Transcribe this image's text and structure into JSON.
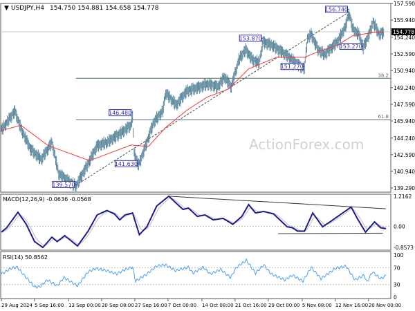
{
  "header": {
    "title": "USDJPY,H4",
    "ohlc": "154.750 154.881 154.658 154.778"
  },
  "watermark": "ActionForex.com",
  "colors": {
    "bars": "#5b879c",
    "sma": "#f03a3a",
    "macd": "#1a1a8c",
    "signal": "#bbbbbb",
    "rsi": "#4a9ff0",
    "annotation": "#3333aa"
  },
  "chart_data": [
    {
      "type": "bar",
      "name": "price",
      "x_unit": "bar",
      "y_axis_ticks": [
        "157.590",
        "155.940",
        "154.240",
        "152.590",
        "150.940",
        "149.240",
        "147.590",
        "145.940",
        "144.240",
        "142.590",
        "140.940",
        "139.290"
      ],
      "ylim": [
        139.29,
        157.59
      ],
      "current_price": "154.778",
      "x_ticks": [
        {
          "bar": 0,
          "label": "29 Aug 2024"
        },
        {
          "bar": 44,
          "label": "5 Sep 16:00"
        },
        {
          "bar": 89,
          "label": "13 Sep 00:00"
        },
        {
          "bar": 133,
          "label": "20 Sep 08:00"
        },
        {
          "bar": 177,
          "label": "27 Sep 16:00"
        },
        {
          "bar": 221,
          "label": "7 Oct 00:00"
        },
        {
          "bar": 266,
          "label": "14 Oct 08:00"
        },
        {
          "bar": 310,
          "label": "21 Oct 16:00"
        },
        {
          "bar": 354,
          "label": "29 Oct 00:00"
        },
        {
          "bar": 399,
          "label": "5 Nov 08:00"
        },
        {
          "bar": 443,
          "label": "12 Nov 16:00"
        },
        {
          "bar": 487,
          "label": "20 Nov 00:00"
        }
      ],
      "price_path": [
        [
          0,
          145.12
        ],
        [
          18,
          147.0
        ],
        [
          26,
          145.26
        ],
        [
          39,
          143.2
        ],
        [
          53,
          142.2
        ],
        [
          67,
          143.9
        ],
        [
          76,
          140.8
        ],
        [
          90,
          140.0
        ],
        [
          99,
          139.57
        ],
        [
          113,
          141.5
        ],
        [
          127,
          143.55
        ],
        [
          140,
          143.9
        ],
        [
          154,
          144.6
        ],
        [
          172,
          145.6
        ],
        [
          174,
          146.48
        ],
        [
          176,
          142.9
        ],
        [
          182,
          141.63
        ],
        [
          193,
          143.9
        ],
        [
          202,
          145.9
        ],
        [
          214,
          147.0
        ],
        [
          218,
          148.8
        ],
        [
          232,
          147.6
        ],
        [
          246,
          149.0
        ],
        [
          264,
          149.4
        ],
        [
          273,
          149.7
        ],
        [
          287,
          149.4
        ],
        [
          296,
          150.4
        ],
        [
          305,
          149.4
        ],
        [
          315,
          152.1
        ],
        [
          324,
          153.1
        ],
        [
          333,
          152.1
        ],
        [
          342,
          151.8
        ],
        [
          347,
          153.87
        ],
        [
          360,
          153.5
        ],
        [
          379,
          152.5
        ],
        [
          397,
          151.4
        ],
        [
          402,
          151.27
        ],
        [
          406,
          154.2
        ],
        [
          411,
          154.6
        ],
        [
          420,
          153.1
        ],
        [
          429,
          152.6
        ],
        [
          447,
          154.0
        ],
        [
          457,
          155.5
        ],
        [
          461,
          156.74
        ],
        [
          466,
          155.2
        ],
        [
          475,
          154.5
        ],
        [
          480,
          153.27
        ],
        [
          489,
          154.85
        ],
        [
          493,
          155.9
        ],
        [
          501,
          154.6
        ],
        [
          507,
          154.78
        ]
      ],
      "sma_path": [
        [
          0,
          145.0
        ],
        [
          26,
          145.5
        ],
        [
          62,
          143.5
        ],
        [
          117,
          142.0
        ],
        [
          172,
          143.55
        ],
        [
          195,
          143.4
        ],
        [
          218,
          145.3
        ],
        [
          246,
          147.0
        ],
        [
          273,
          148.3
        ],
        [
          301,
          149.1
        ],
        [
          328,
          151.1
        ],
        [
          365,
          152.25
        ],
        [
          402,
          152.25
        ],
        [
          420,
          152.8
        ],
        [
          447,
          153.5
        ],
        [
          466,
          154.4
        ],
        [
          493,
          154.7
        ],
        [
          507,
          154.7
        ]
      ],
      "annotations": [
        {
          "bar": 99,
          "value": "139.570"
        },
        {
          "bar": 174,
          "value": "146.480"
        },
        {
          "bar": 182,
          "value": "141.630"
        },
        {
          "bar": 347,
          "value": "153.870"
        },
        {
          "bar": 402,
          "value": "151.270"
        },
        {
          "bar": 461,
          "value": "156.740"
        },
        {
          "bar": 480,
          "value": "153.270"
        }
      ],
      "fib_levels": [
        {
          "label": "38.2",
          "price": 150.17
        },
        {
          "label": "61.8",
          "price": 146.06
        }
      ],
      "trendline": [
        [
          99,
          139.57
        ],
        [
          461,
          156.74
        ]
      ]
    },
    {
      "type": "line",
      "name": "macd",
      "label": "MACD(12,26,9) -0.0636 -0.0568",
      "ylim": [
        -0.8573,
        1.2162
      ],
      "y_ticks": [
        "1.2162",
        "0.00",
        "-0.8573"
      ],
      "values": [
        [
          0,
          -0.24
        ],
        [
          7,
          -0.06
        ],
        [
          22,
          0.57
        ],
        [
          33,
          0.08
        ],
        [
          44,
          -0.62
        ],
        [
          55,
          -0.86
        ],
        [
          67,
          -0.44
        ],
        [
          74,
          -0.62
        ],
        [
          84,
          -0.38
        ],
        [
          101,
          -0.8
        ],
        [
          115,
          -0.2
        ],
        [
          127,
          0.46
        ],
        [
          140,
          0.64
        ],
        [
          150,
          0.5
        ],
        [
          157,
          0.26
        ],
        [
          164,
          0.46
        ],
        [
          174,
          0.54
        ],
        [
          183,
          -0.34
        ],
        [
          193,
          -0.02
        ],
        [
          206,
          0.82
        ],
        [
          222,
          1.22
        ],
        [
          231,
          0.96
        ],
        [
          241,
          0.68
        ],
        [
          248,
          0.74
        ],
        [
          260,
          0.4
        ],
        [
          270,
          0.46
        ],
        [
          281,
          0.26
        ],
        [
          294,
          0.32
        ],
        [
          307,
          0.08
        ],
        [
          319,
          0.4
        ],
        [
          328,
          0.88
        ],
        [
          337,
          0.54
        ],
        [
          348,
          0.6
        ],
        [
          361,
          0.5
        ],
        [
          379,
          -0.02
        ],
        [
          386,
          -0.06
        ],
        [
          393,
          -0.2
        ],
        [
          402,
          -0.2
        ],
        [
          413,
          0.54
        ],
        [
          426,
          -0.02
        ],
        [
          436,
          0.18
        ],
        [
          449,
          0.46
        ],
        [
          464,
          0.78
        ],
        [
          472,
          0.32
        ],
        [
          483,
          -0.24
        ],
        [
          495,
          0.18
        ],
        [
          503,
          -0.06
        ],
        [
          510,
          -0.1
        ]
      ],
      "trendlines": [
        [
          [
            222,
            1.22
          ],
          [
            510,
            0.71
          ]
        ],
        [
          [
            367,
            -0.3
          ],
          [
            506,
            -0.28
          ]
        ]
      ]
    },
    {
      "type": "line",
      "name": "rsi",
      "label": "RSI(14) 50.8562",
      "ylim": [
        0,
        100
      ],
      "y_ticks": [
        "100",
        "70",
        "30",
        "0"
      ],
      "values": [
        [
          0,
          54.7
        ],
        [
          12,
          68
        ],
        [
          21,
          71
        ],
        [
          33,
          46.5
        ],
        [
          44,
          24.6
        ],
        [
          51,
          24.6
        ],
        [
          61,
          41
        ],
        [
          74,
          27
        ],
        [
          83,
          46.5
        ],
        [
          101,
          27
        ],
        [
          115,
          60
        ],
        [
          125,
          68
        ],
        [
          140,
          63
        ],
        [
          153,
          55
        ],
        [
          164,
          65.6
        ],
        [
          174,
          71
        ],
        [
          178,
          38
        ],
        [
          193,
          55
        ],
        [
          206,
          74
        ],
        [
          218,
          76.6
        ],
        [
          231,
          63
        ],
        [
          248,
          71
        ],
        [
          254,
          57
        ],
        [
          268,
          71
        ],
        [
          277,
          55
        ],
        [
          291,
          65.6
        ],
        [
          304,
          46.5
        ],
        [
          312,
          71
        ],
        [
          325,
          87.5
        ],
        [
          337,
          57
        ],
        [
          348,
          76.6
        ],
        [
          358,
          55
        ],
        [
          376,
          41
        ],
        [
          386,
          52
        ],
        [
          400,
          38
        ],
        [
          411,
          71
        ],
        [
          424,
          43.7
        ],
        [
          443,
          68
        ],
        [
          457,
          74
        ],
        [
          469,
          41
        ],
        [
          481,
          52
        ],
        [
          485,
          35.6
        ],
        [
          492,
          60
        ],
        [
          503,
          43.7
        ],
        [
          510,
          50.86
        ]
      ]
    }
  ]
}
